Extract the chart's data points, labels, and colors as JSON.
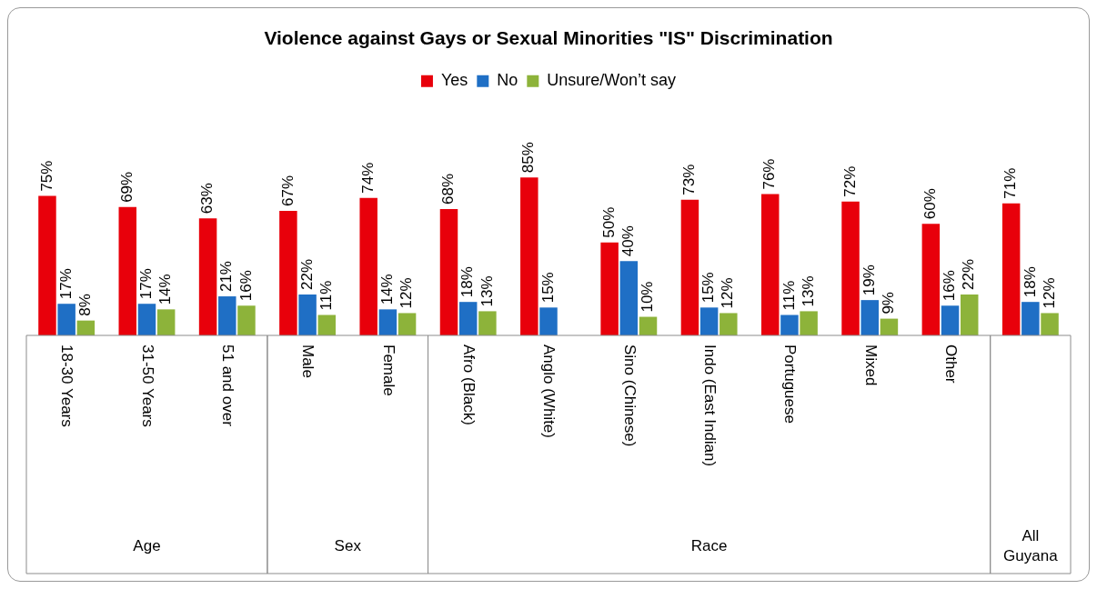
{
  "chart_data": {
    "type": "bar",
    "title": "Violence against Gays or Sexual Minorities \"IS\" Discrimination",
    "categories": [
      "18-30 Years",
      "31-50 Years",
      "51 and over",
      "Male",
      "Female",
      "Afro (Black)",
      "Anglo (White)",
      "Sino (Chinese)",
      "Indo (East Indian)",
      "Portuguese",
      "Mixed",
      "Other",
      null
    ],
    "series": [
      {
        "name": "Yes",
        "color": "#e8000b",
        "values": [
          75,
          69,
          63,
          67,
          74,
          68,
          85,
          50,
          73,
          76,
          72,
          60,
          71
        ],
        "value_labels": [
          "75%",
          "69%",
          "63%",
          "67%",
          "74%",
          "68%",
          "85%",
          "50%",
          "73%",
          "76%",
          "72%",
          "60%",
          "71%"
        ]
      },
      {
        "name": "No",
        "color": "#1f6fc5",
        "values": [
          17,
          17,
          21,
          22,
          14,
          18,
          15,
          40,
          15,
          11,
          19,
          16,
          18
        ],
        "value_labels": [
          "17%",
          "17%",
          "21%",
          "22%",
          "14%",
          "18%",
          "15%",
          "40%",
          "15%",
          "11%",
          "19%",
          "16%",
          "18%"
        ]
      },
      {
        "name": "Unsure/Won’t say",
        "color": "#8db33a",
        "values": [
          8,
          14,
          16,
          11,
          12,
          13,
          null,
          10,
          12,
          13,
          9,
          22,
          12
        ],
        "value_labels": [
          "8%",
          "14%",
          "16%",
          "11%",
          "12%",
          "13%",
          null,
          "10%",
          "12%",
          "13%",
          "9%",
          "22%",
          "12%"
        ]
      }
    ],
    "annotations": [
      "Age",
      "Sex",
      "Race",
      "All Guyana"
    ],
    "legend": "top"
  }
}
